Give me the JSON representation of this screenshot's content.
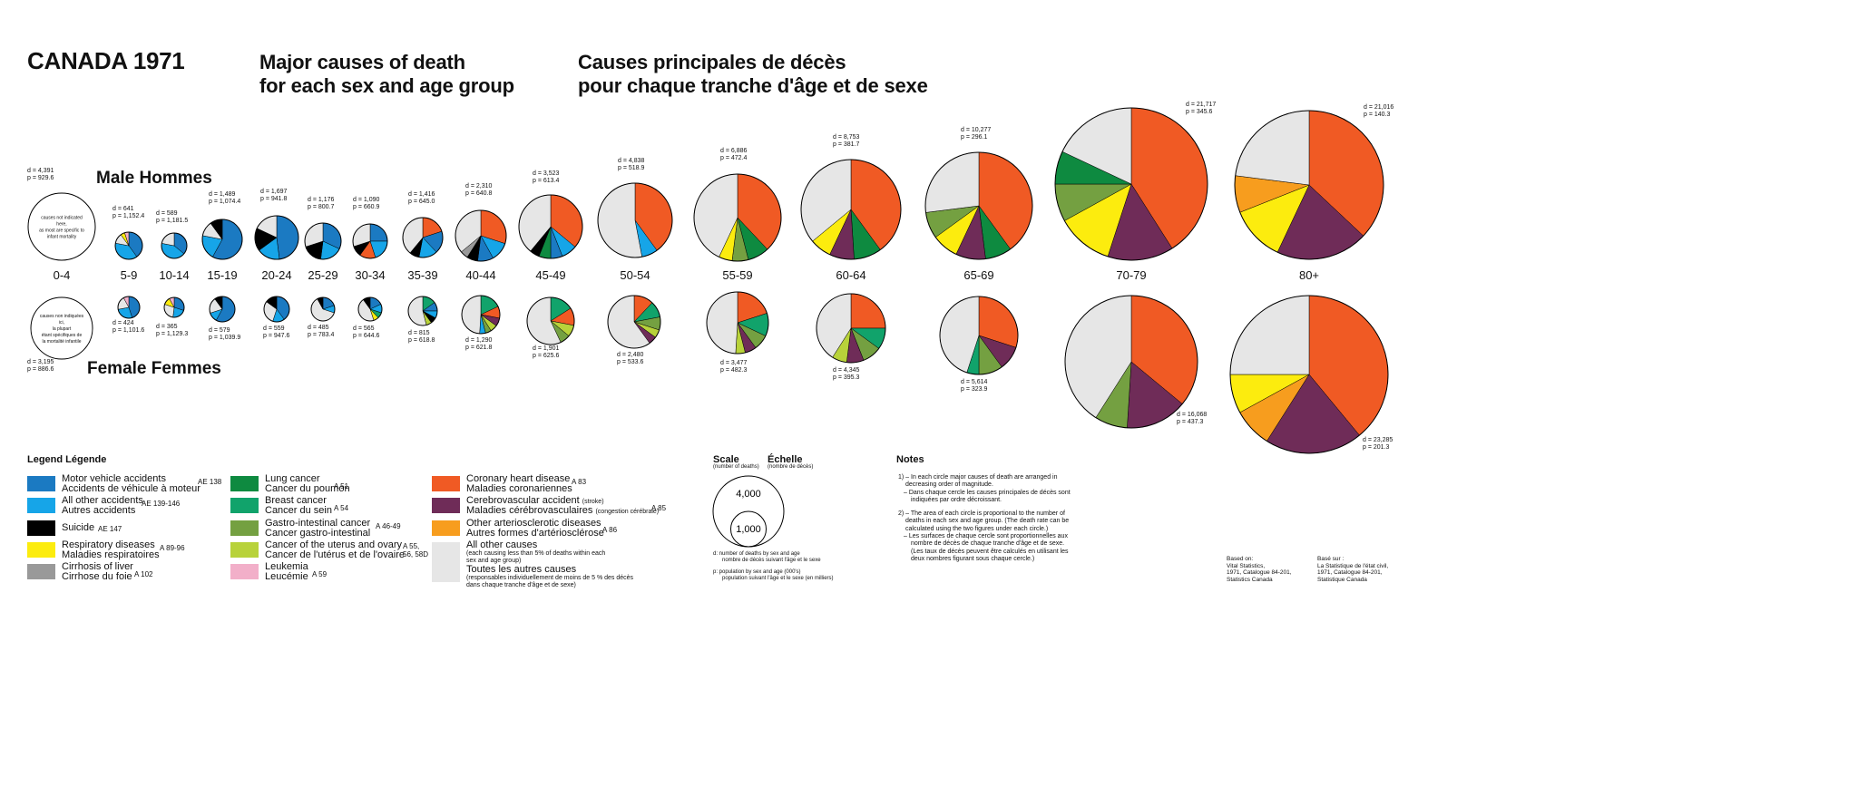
{
  "header": {
    "title": "CANADA 1971",
    "subtitle_en_line1": "Major causes of death",
    "subtitle_en_line2": "for each sex and age group",
    "subtitle_fr_line1": "Causes principales de décès",
    "subtitle_fr_line2": "pour chaque tranche d'âge et de sexe"
  },
  "labels": {
    "male": "Male  Hommes",
    "female": "Female  Femmes"
  },
  "causes": {
    "mva": {
      "en": "Motor vehicle accidents",
      "fr": "Accidents de véhicule à moteur",
      "code": "AE 138",
      "color": "#1b7ac2"
    },
    "acc": {
      "en": "All other accidents",
      "fr": "Autres accidents",
      "code": "AE 139-146",
      "color": "#16a5e8"
    },
    "sui": {
      "en": "Suicide",
      "fr": "",
      "code": "AE 147",
      "color": "#000000"
    },
    "resp": {
      "en": "Respiratory diseases",
      "fr": "Maladies respiratoires",
      "code": "A 89-96",
      "color": "#fcec0e"
    },
    "liver": {
      "en": "Cirrhosis of liver",
      "fr": "Cirrhose du foie",
      "code": "A 102",
      "color": "#999999"
    },
    "lung": {
      "en": "Lung cancer",
      "fr": "Cancer du poumon",
      "code": "A 51",
      "color": "#0e8a40"
    },
    "breast": {
      "en": "Breast cancer",
      "fr": "Cancer du sein",
      "code": "A 54",
      "color": "#11a36b"
    },
    "gi": {
      "en": "Gastro-intestinal cancer",
      "fr": "Cancer gastro-intestinal",
      "code": "A 46-49",
      "color": "#74a041"
    },
    "uterus": {
      "en": "Cancer of the uterus and ovary",
      "fr": "Cancer de l'utérus et de l'ovaire",
      "code": "A 55,",
      "code2": "56, 58D",
      "color": "#b8d23a"
    },
    "leuk": {
      "en": "Leukemia",
      "fr": "Leucémie",
      "code": "A 59",
      "color": "#f2afc9"
    },
    "chd": {
      "en": "Coronary heart disease",
      "fr": "Maladies coronariennes",
      "code": "A 83",
      "color": "#f05a24"
    },
    "cva": {
      "en": "Cerebrovascular accident",
      "en_small": "(stroke)",
      "fr": "Maladies cérébrovasculaires",
      "fr_small": "(congestion cérébrale)",
      "code": "A 85",
      "color": "#6f2c58"
    },
    "arter": {
      "en": "Other arteriosclerotic diseases",
      "fr": "Autres formes d'artériosclérose",
      "code": "A 86",
      "color": "#f79d1e"
    },
    "other": {
      "en": "All other causes",
      "en_small1": "(each causing less than 5% of deaths within each",
      "en_small2": "sex and age group)",
      "fr": "Toutes les autres causes",
      "fr_small1": "(responsables individuellement de moins de 5 % des décès",
      "fr_small2": "dans chaque tranche d'âge et de sexe)",
      "color": "#e6e6e6"
    }
  },
  "legend": {
    "title": "Legend  Légende"
  },
  "scale": {
    "title_en": "Scale",
    "title_fr": "Échelle",
    "unit_en": "(number of deaths)",
    "unit_fr": "(nombre de décès)",
    "big_label": "4,000",
    "big_value": 4000,
    "small_label": "1,000",
    "small_value": 1000,
    "note_d1": "d:  number of deaths by sex and age",
    "note_d2": "nombre de décès suivant l'âge et le sexe",
    "note_p1": "p:  population by sex and age (000's)",
    "note_p2": "population suivant l'âge et le sexe (en milliers)"
  },
  "notes": {
    "title": "Notes",
    "n1a": "1) – In each circle major causes of death are arranged in decreasing order of magnitude.",
    "n1b": "– Dans chaque cercle les causes principales de décès sont indiquées par ordre décroissant.",
    "n2a": "2) – The area of each circle is proportional to the number of deaths in each sex and age group. (The death rate can be calculated using the two figures under each circle.)",
    "n2b": "– Les surfaces de chaque cercle sont proportionnelles aux nombre de décès de chaque tranche d'âge et de sexe. (Les taux de décès peuvent être calculés en utilisant les deux nombres figurant sous chaque cercle.)"
  },
  "source": {
    "en": [
      "Based on:",
      "Vital Statistics,",
      "1971, Catalogue 84-201,",
      "Statistics Canada"
    ],
    "fr": [
      "Basé sur :",
      "La Statistique de l'état civil,",
      "1971, Catalogue 84-201,",
      "Statistique Canada"
    ]
  },
  "chart_data": {
    "type": "pie",
    "title": "Major causes of death for each sex and age group",
    "groups": [
      {
        "age": "0-4",
        "male": {
          "d": "4,391",
          "p": "929.6",
          "note": [
            "causes not indicated",
            "here,",
            "as most are specific to",
            "infant mortality"
          ],
          "slices": []
        },
        "female": {
          "d": "3,195",
          "p": "886.6",
          "note": [
            "causes non indiquées",
            "ici,",
            "la plupart",
            "étant spécifiques de",
            "la mortalité infantile"
          ],
          "slices": []
        }
      },
      {
        "age": "5-9",
        "male": {
          "d": "641",
          "p": "1,152.4",
          "slices": [
            [
              "mva",
              40
            ],
            [
              "acc",
              38
            ],
            [
              "other",
              12
            ],
            [
              "resp",
              5
            ],
            [
              "leuk",
              5
            ]
          ]
        },
        "female": {
          "d": "424",
          "p": "1,101.6",
          "slices": [
            [
              "mva",
              45
            ],
            [
              "acc",
              27
            ],
            [
              "other",
              20
            ],
            [
              "leuk",
              8
            ]
          ]
        }
      },
      {
        "age": "10-14",
        "male": {
          "d": "589",
          "p": "1,181.5",
          "slices": [
            [
              "mva",
              36
            ],
            [
              "acc",
              42
            ],
            [
              "other",
              22
            ]
          ]
        },
        "female": {
          "d": "365",
          "p": "1,129.3",
          "slices": [
            [
              "mva",
              30
            ],
            [
              "acc",
              22
            ],
            [
              "other",
              28
            ],
            [
              "resp",
              12
            ],
            [
              "leuk",
              8
            ]
          ]
        }
      },
      {
        "age": "15-19",
        "male": {
          "d": "1,489",
          "p": "1,074.4",
          "slices": [
            [
              "mva",
              58
            ],
            [
              "acc",
              20
            ],
            [
              "other",
              12
            ],
            [
              "sui",
              10
            ]
          ]
        },
        "female": {
          "d": "579",
          "p": "1,039.9",
          "slices": [
            [
              "mva",
              58
            ],
            [
              "acc",
              12
            ],
            [
              "other",
              20
            ],
            [
              "sui",
              10
            ]
          ]
        }
      },
      {
        "age": "20-24",
        "male": {
          "d": "1,697",
          "p": "941.8",
          "slices": [
            [
              "mva",
              48
            ],
            [
              "acc",
              17
            ],
            [
              "sui",
              17
            ],
            [
              "other",
              18
            ]
          ]
        },
        "female": {
          "d": "559",
          "p": "947.6",
          "slices": [
            [
              "mva",
              40
            ],
            [
              "acc",
              15
            ],
            [
              "other",
              30
            ],
            [
              "sui",
              15
            ]
          ]
        }
      },
      {
        "age": "25-29",
        "male": {
          "d": "1,176",
          "p": "800.7",
          "slices": [
            [
              "mva",
              32
            ],
            [
              "acc",
              20
            ],
            [
              "sui",
              18
            ],
            [
              "other",
              30
            ]
          ]
        },
        "female": {
          "d": "485",
          "p": "783.4",
          "slices": [
            [
              "mva",
              20
            ],
            [
              "acc",
              10
            ],
            [
              "other",
              62
            ],
            [
              "sui",
              8
            ]
          ]
        }
      },
      {
        "age": "30-34",
        "male": {
          "d": "1,090",
          "p": "660.9",
          "slices": [
            [
              "mva",
              25
            ],
            [
              "acc",
              20
            ],
            [
              "chd",
              15
            ],
            [
              "sui",
              10
            ],
            [
              "other",
              30
            ]
          ]
        },
        "female": {
          "d": "565",
          "p": "644.6",
          "slices": [
            [
              "mva",
              18
            ],
            [
              "acc",
              12
            ],
            [
              "breast",
              8
            ],
            [
              "resp",
              7
            ],
            [
              "other",
              45
            ],
            [
              "sui",
              10
            ]
          ]
        }
      },
      {
        "age": "35-39",
        "male": {
          "d": "1,416",
          "p": "645.0",
          "slices": [
            [
              "chd",
              20
            ],
            [
              "mva",
              18
            ],
            [
              "acc",
              15
            ],
            [
              "sui",
              8
            ],
            [
              "other",
              39
            ]
          ]
        },
        "female": {
          "d": "815",
          "p": "618.8",
          "slices": [
            [
              "breast",
              15
            ],
            [
              "mva",
              10
            ],
            [
              "acc",
              8
            ],
            [
              "sui",
              7
            ],
            [
              "uterus",
              6
            ],
            [
              "other",
              54
            ]
          ]
        }
      },
      {
        "age": "40-44",
        "male": {
          "d": "2,310",
          "p": "640.8",
          "slices": [
            [
              "chd",
              30
            ],
            [
              "acc",
              12
            ],
            [
              "mva",
              10
            ],
            [
              "sui",
              7
            ],
            [
              "liver",
              5
            ],
            [
              "other",
              36
            ]
          ]
        },
        "female": {
          "d": "1,290",
          "p": "621.8",
          "slices": [
            [
              "breast",
              18
            ],
            [
              "chd",
              10
            ],
            [
              "cva",
              7
            ],
            [
              "uterus",
              6
            ],
            [
              "gi",
              5
            ],
            [
              "acc",
              5
            ],
            [
              "other",
              49
            ]
          ]
        }
      },
      {
        "age": "45-49",
        "male": {
          "d": "3,523",
          "p": "613.4",
          "slices": [
            [
              "chd",
              36
            ],
            [
              "acc",
              8
            ],
            [
              "mva",
              6
            ],
            [
              "lung",
              6
            ],
            [
              "sui",
              5
            ],
            [
              "other",
              39
            ]
          ]
        },
        "female": {
          "d": "1,901",
          "p": "625.6",
          "slices": [
            [
              "breast",
              16
            ],
            [
              "chd",
              12
            ],
            [
              "uterus",
              8
            ],
            [
              "gi",
              7
            ],
            [
              "other",
              57
            ]
          ]
        }
      },
      {
        "age": "50-54",
        "male": {
          "d": "4,838",
          "p": "518.9",
          "slices": [
            [
              "chd",
              40
            ],
            [
              "acc",
              7
            ],
            [
              "other",
              53
            ]
          ]
        },
        "female": {
          "d": "2,480",
          "p": "533.6",
          "slices": [
            [
              "chd",
              12
            ],
            [
              "breast",
              10
            ],
            [
              "gi",
              8
            ],
            [
              "uterus",
              5
            ],
            [
              "cva",
              5
            ],
            [
              "other",
              60
            ]
          ]
        }
      },
      {
        "age": "55-59",
        "male": {
          "d": "6,886",
          "p": "472.4",
          "slices": [
            [
              "chd",
              38
            ],
            [
              "lung",
              8
            ],
            [
              "gi",
              6
            ],
            [
              "resp",
              5
            ],
            [
              "other",
              43
            ]
          ]
        },
        "female": {
          "d": "3,477",
          "p": "482.3",
          "slices": [
            [
              "chd",
              20
            ],
            [
              "breast",
              12
            ],
            [
              "gi",
              8
            ],
            [
              "cva",
              6
            ],
            [
              "uterus",
              5
            ],
            [
              "other",
              49
            ]
          ]
        }
      },
      {
        "age": "60-64",
        "male": {
          "d": "8,753",
          "p": "381.7",
          "slices": [
            [
              "chd",
              40
            ],
            [
              "lung",
              9
            ],
            [
              "cva",
              8
            ],
            [
              "resp",
              7
            ],
            [
              "other",
              36
            ]
          ]
        },
        "female": {
          "d": "4,345",
          "p": "395.3",
          "slices": [
            [
              "chd",
              25
            ],
            [
              "breast",
              10
            ],
            [
              "gi",
              9
            ],
            [
              "cva",
              8
            ],
            [
              "uterus",
              7
            ],
            [
              "other",
              41
            ]
          ]
        }
      },
      {
        "age": "65-69",
        "male": {
          "d": "10,277",
          "p": "296.1",
          "slices": [
            [
              "chd",
              40
            ],
            [
              "lung",
              8
            ],
            [
              "cva",
              9
            ],
            [
              "resp",
              8
            ],
            [
              "gi",
              8
            ],
            [
              "other",
              27
            ]
          ]
        },
        "female": {
          "d": "5,614",
          "p": "323.9",
          "slices": [
            [
              "chd",
              30
            ],
            [
              "cva",
              10
            ],
            [
              "gi",
              10
            ],
            [
              "breast",
              5
            ],
            [
              "other",
              45
            ]
          ]
        }
      },
      {
        "age": "70-79",
        "male": {
          "d": "21,717",
          "p": "345.6",
          "slices": [
            [
              "chd",
              41
            ],
            [
              "cva",
              14
            ],
            [
              "resp",
              12
            ],
            [
              "gi",
              8
            ],
            [
              "lung",
              7
            ],
            [
              "other",
              18
            ]
          ]
        },
        "female": {
          "d": "16,068",
          "p": "437.3",
          "slices": [
            [
              "chd",
              36
            ],
            [
              "cva",
              15
            ],
            [
              "gi",
              8
            ],
            [
              "other",
              41
            ]
          ]
        }
      },
      {
        "age": "80+",
        "male": {
          "d": "21,016",
          "p": "140.3",
          "slices": [
            [
              "chd",
              37
            ],
            [
              "cva",
              20
            ],
            [
              "resp",
              12
            ],
            [
              "arter",
              8
            ],
            [
              "other",
              23
            ]
          ]
        },
        "female": {
          "d": "23,285",
          "p": "201.3",
          "slices": [
            [
              "chd",
              39
            ],
            [
              "cva",
              20
            ],
            [
              "arter",
              8
            ],
            [
              "resp",
              8
            ],
            [
              "other",
              25
            ]
          ]
        }
      }
    ]
  }
}
